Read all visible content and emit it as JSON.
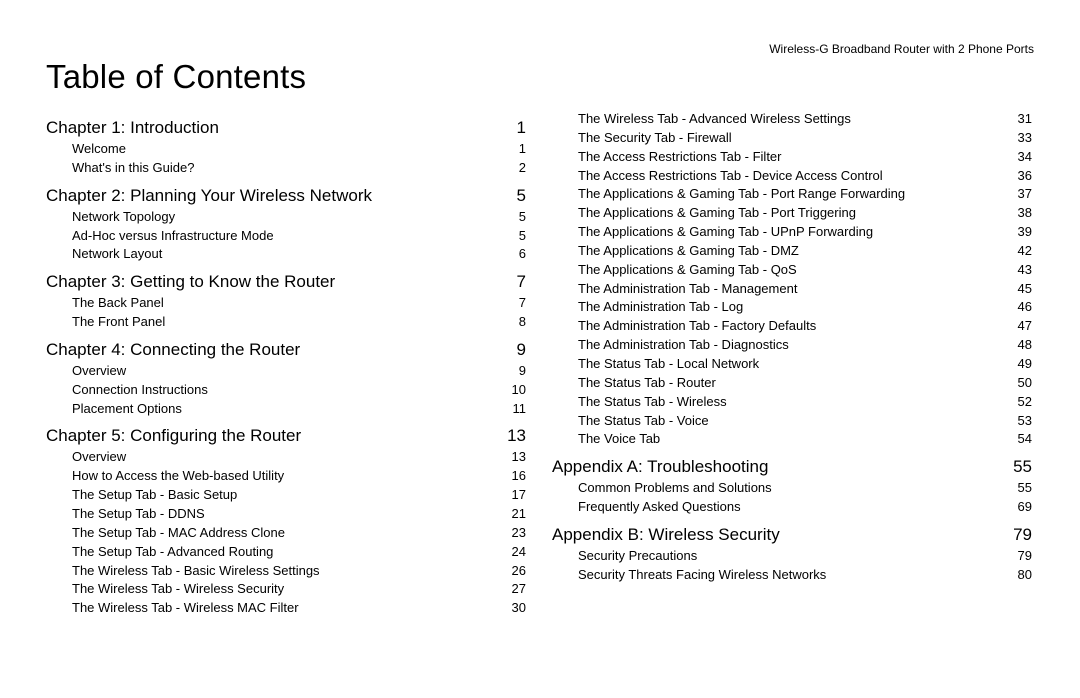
{
  "header": "Wireless-G Broadband Router with 2 Phone Ports",
  "title": "Table of Contents",
  "col1": [
    {
      "type": "chapter",
      "label": "Chapter 1: Introduction",
      "page": "1"
    },
    {
      "type": "sub",
      "label": "Welcome",
      "page": "1"
    },
    {
      "type": "sub",
      "label": "What's in this Guide?",
      "page": "2"
    },
    {
      "type": "chapter",
      "label": "Chapter 2: Planning Your Wireless Network",
      "page": "5"
    },
    {
      "type": "sub",
      "label": "Network Topology",
      "page": "5"
    },
    {
      "type": "sub",
      "label": "Ad-Hoc versus Infrastructure Mode",
      "page": "5"
    },
    {
      "type": "sub",
      "label": "Network Layout",
      "page": "6"
    },
    {
      "type": "chapter",
      "label": "Chapter 3: Getting to Know the Router",
      "page": "7"
    },
    {
      "type": "sub",
      "label": "The Back Panel",
      "page": "7"
    },
    {
      "type": "sub",
      "label": "The Front Panel",
      "page": "8"
    },
    {
      "type": "chapter",
      "label": "Chapter 4: Connecting the Router",
      "page": "9"
    },
    {
      "type": "sub",
      "label": "Overview",
      "page": "9"
    },
    {
      "type": "sub",
      "label": "Connection Instructions",
      "page": "10"
    },
    {
      "type": "sub",
      "label": "Placement Options",
      "page": "11"
    },
    {
      "type": "chapter",
      "label": "Chapter 5: Configuring the Router",
      "page": "13"
    },
    {
      "type": "sub",
      "label": "Overview",
      "page": "13"
    },
    {
      "type": "sub",
      "label": "How to Access the Web-based Utility",
      "page": "16"
    },
    {
      "type": "sub",
      "label": "The Setup Tab - Basic Setup",
      "page": "17"
    },
    {
      "type": "sub",
      "label": "The Setup Tab - DDNS",
      "page": "21"
    },
    {
      "type": "sub",
      "label": "The Setup Tab - MAC Address Clone",
      "page": "23"
    },
    {
      "type": "sub",
      "label": "The Setup Tab - Advanced Routing",
      "page": "24"
    },
    {
      "type": "sub",
      "label": "The Wireless Tab - Basic Wireless Settings",
      "page": "26"
    },
    {
      "type": "sub",
      "label": "The Wireless Tab - Wireless Security",
      "page": "27"
    },
    {
      "type": "sub",
      "label": "The Wireless Tab - Wireless MAC Filter",
      "page": "30"
    }
  ],
  "col2": [
    {
      "type": "sub",
      "label": "The Wireless Tab - Advanced Wireless Settings",
      "page": "31"
    },
    {
      "type": "sub",
      "label": "The Security Tab - Firewall",
      "page": "33"
    },
    {
      "type": "sub",
      "label": "The Access Restrictions Tab - Filter",
      "page": "34"
    },
    {
      "type": "sub",
      "label": "The Access Restrictions Tab - Device Access Control",
      "page": "36"
    },
    {
      "type": "sub",
      "label": "The Applications & Gaming Tab - Port Range Forwarding",
      "page": "37"
    },
    {
      "type": "sub",
      "label": "The Applications & Gaming Tab - Port Triggering",
      "page": "38"
    },
    {
      "type": "sub",
      "label": "The Applications & Gaming Tab - UPnP Forwarding",
      "page": "39"
    },
    {
      "type": "sub",
      "label": "The Applications & Gaming Tab - DMZ",
      "page": "42"
    },
    {
      "type": "sub",
      "label": "The Applications & Gaming Tab - QoS",
      "page": "43"
    },
    {
      "type": "sub",
      "label": "The Administration Tab - Management",
      "page": "45"
    },
    {
      "type": "sub",
      "label": "The Administration Tab - Log",
      "page": "46"
    },
    {
      "type": "sub",
      "label": "The Administration Tab - Factory Defaults",
      "page": "47"
    },
    {
      "type": "sub",
      "label": "The Administration Tab - Diagnostics",
      "page": "48"
    },
    {
      "type": "sub",
      "label": "The Status Tab - Local Network",
      "page": "49"
    },
    {
      "type": "sub",
      "label": "The Status Tab - Router",
      "page": "50"
    },
    {
      "type": "sub",
      "label": "The Status Tab - Wireless",
      "page": "52"
    },
    {
      "type": "sub",
      "label": "The Status Tab - Voice",
      "page": "53"
    },
    {
      "type": "sub",
      "label": "The Voice Tab",
      "page": "54"
    },
    {
      "type": "chapter",
      "label": "Appendix A: Troubleshooting",
      "page": "55"
    },
    {
      "type": "sub",
      "label": "Common Problems and Solutions",
      "page": "55"
    },
    {
      "type": "sub",
      "label": "Frequently Asked Questions",
      "page": "69"
    },
    {
      "type": "chapter",
      "label": "Appendix B: Wireless Security",
      "page": "79"
    },
    {
      "type": "sub",
      "label": "Security Precautions",
      "page": "79"
    },
    {
      "type": "sub",
      "label": "Security Threats Facing Wireless Networks",
      "page": "80"
    }
  ]
}
